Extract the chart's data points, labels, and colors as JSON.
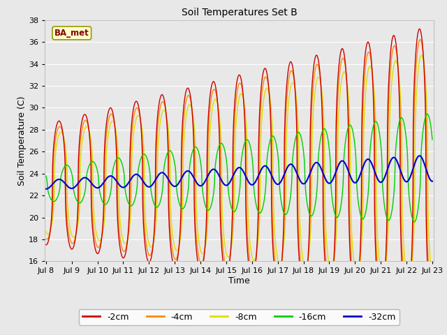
{
  "title": "Soil Temperatures Set B",
  "xlabel": "Time",
  "ylabel": "Soil Temperature (C)",
  "ylim": [
    16,
    38
  ],
  "xlim_days": [
    8,
    23
  ],
  "x_ticks": [
    8,
    9,
    10,
    11,
    12,
    13,
    14,
    15,
    16,
    17,
    18,
    19,
    20,
    21,
    22,
    23
  ],
  "x_tick_labels": [
    "Jul 8",
    "Jul 9",
    "Jul 10",
    "Jul 11",
    "Jul 12",
    "Jul 13",
    "Jul 14",
    "Jul 15",
    "Jul 16",
    "Jul 17",
    "Jul 18",
    "Jul 19",
    "Jul 20",
    "Jul 21",
    "Jul 22",
    "Jul 23"
  ],
  "colors": {
    "-2cm": "#cc0000",
    "-4cm": "#ff8800",
    "-8cm": "#dddd00",
    "-16cm": "#00cc00",
    "-32cm": "#0000cc"
  },
  "label_box_facecolor": "#ffffcc",
  "label_box_edgecolor": "#999900",
  "label_text": "BA_met",
  "label_text_color": "#880000",
  "bg_color": "#e8e8e8",
  "plot_bg_color": "#e8e8e8",
  "grid_color": "#ffffff",
  "linewidth": 1.0,
  "n_points": 1500
}
